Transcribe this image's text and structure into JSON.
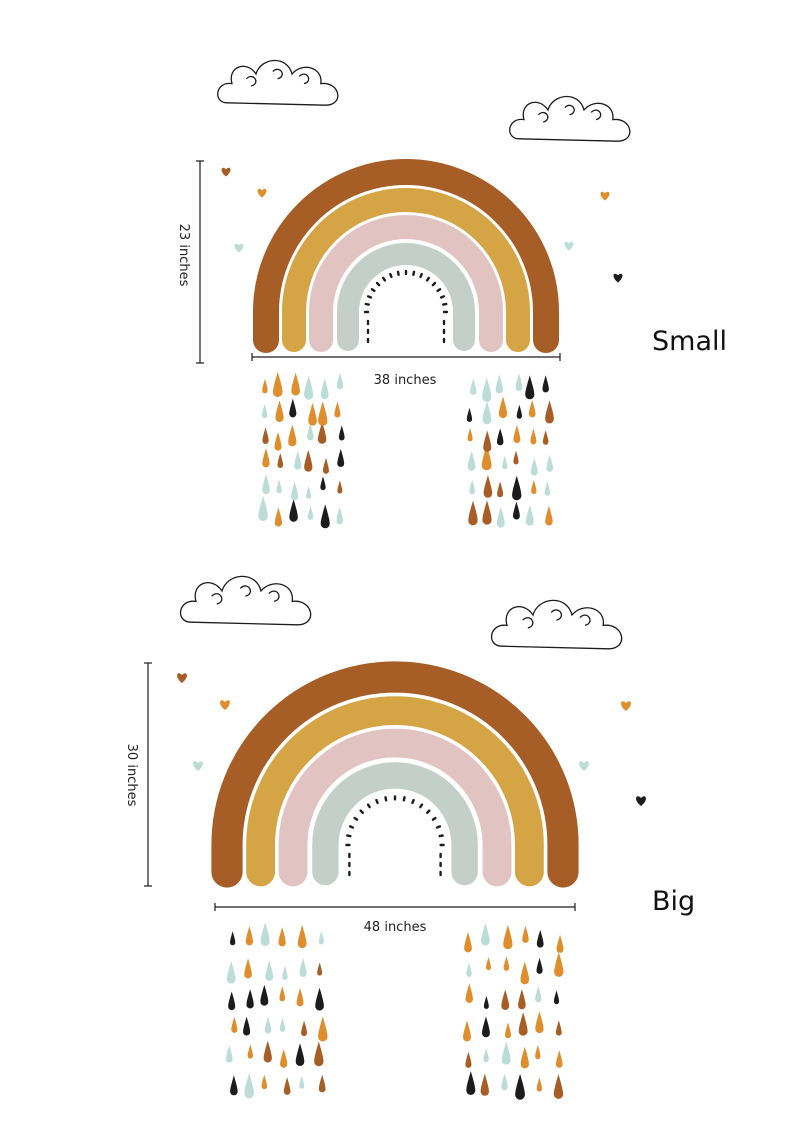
{
  "variants": [
    {
      "name": "Small",
      "height_label": "23 inches",
      "width_label": "38 inches"
    },
    {
      "name": "Big",
      "height_label": "30 inches",
      "width_label": "48 inches"
    }
  ]
}
